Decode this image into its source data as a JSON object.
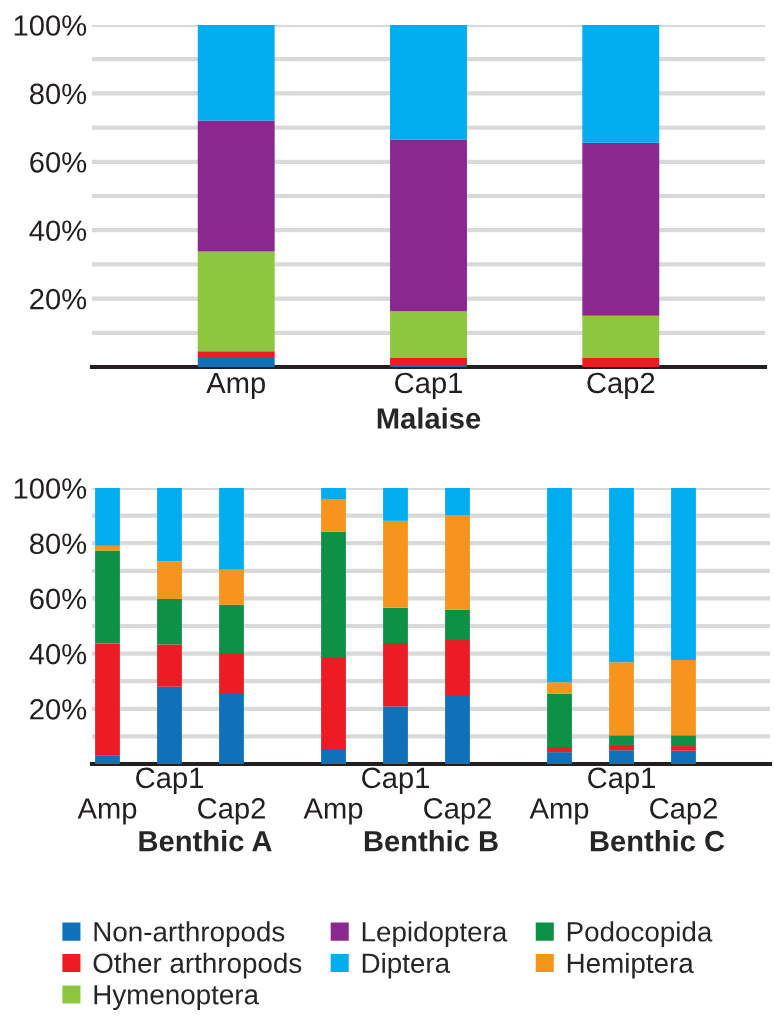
{
  "chart_data": [
    {
      "type": "bar",
      "stacked": true,
      "xlabel": "Malaise",
      "categories": [
        "Amp",
        "Cap1",
        "Cap2"
      ],
      "ylim": [
        0,
        100
      ],
      "yticks": [
        {
          "value": 10,
          "label": null
        },
        {
          "value": 20,
          "label": "20%"
        },
        {
          "value": 30,
          "label": null
        },
        {
          "value": 40,
          "label": "40%"
        },
        {
          "value": 50,
          "label": null
        },
        {
          "value": 60,
          "label": "60%"
        },
        {
          "value": 70,
          "label": null
        },
        {
          "value": 80,
          "label": "80%"
        },
        {
          "value": 90,
          "label": null
        },
        {
          "value": 100,
          "label": "100%"
        }
      ],
      "grid": "y",
      "legend": "bottom",
      "series": [
        {
          "name": "Non-arthropods",
          "color": "#1071b9",
          "values": [
            2.9,
            0.3,
            0
          ]
        },
        {
          "name": "Other arthropods",
          "color": "#ed1c24",
          "values": [
            1.7,
            2.3,
            2.6
          ]
        },
        {
          "name": "Hymenoptera",
          "color": "#8dc63f",
          "values": [
            29.2,
            13.7,
            12.4
          ]
        },
        {
          "name": "Lepidoptera",
          "color": "#8b288f",
          "values": [
            38.3,
            50.2,
            50.6
          ]
        },
        {
          "name": "Diptera",
          "color": "#00aeef",
          "values": [
            27.9,
            33.5,
            34.4
          ]
        }
      ]
    },
    {
      "type": "bar",
      "stacked": true,
      "xlabel": "Benthic A",
      "categories": [
        "Amp",
        "Cap1",
        "Cap2"
      ],
      "ylim": [
        0,
        100
      ],
      "yticks": [
        {
          "value": 10,
          "label": null
        },
        {
          "value": 20,
          "label": "20%"
        },
        {
          "value": 30,
          "label": null
        },
        {
          "value": 40,
          "label": "40%"
        },
        {
          "value": 50,
          "label": null
        },
        {
          "value": 60,
          "label": "60%"
        },
        {
          "value": 70,
          "label": null
        },
        {
          "value": 80,
          "label": "80%"
        },
        {
          "value": 90,
          "label": null
        },
        {
          "value": 100,
          "label": "100%"
        }
      ],
      "grid": "y",
      "legend": "bottom",
      "series": [
        {
          "name": "Non-arthropods",
          "color": "#1071b9",
          "values": [
            3.2,
            28.0,
            25.4
          ]
        },
        {
          "name": "Other arthropods",
          "color": "#ed1c24",
          "values": [
            40.5,
            15.3,
            14.8
          ]
        },
        {
          "name": "Podocopida",
          "color": "#0d9146",
          "values": [
            33.7,
            16.5,
            17.5
          ]
        },
        {
          "name": "Hemiptera",
          "color": "#f7941d",
          "values": [
            1.7,
            13.7,
            12.8
          ]
        },
        {
          "name": "Diptera",
          "color": "#00aeef",
          "values": [
            20.9,
            26.5,
            29.5
          ]
        }
      ]
    },
    {
      "type": "bar",
      "stacked": true,
      "xlabel": "Benthic B",
      "categories": [
        "Amp",
        "Cap1",
        "Cap2"
      ],
      "ylim": [
        0,
        100
      ],
      "yticks": [
        {
          "value": 10,
          "label": null
        },
        {
          "value": 20,
          "label": "20%"
        },
        {
          "value": 30,
          "label": null
        },
        {
          "value": 40,
          "label": "40%"
        },
        {
          "value": 50,
          "label": null
        },
        {
          "value": 60,
          "label": "60%"
        },
        {
          "value": 70,
          "label": null
        },
        {
          "value": 80,
          "label": "80%"
        },
        {
          "value": 90,
          "label": null
        },
        {
          "value": 100,
          "label": "100%"
        }
      ],
      "grid": "y",
      "tick_labels": "x",
      "legend": "bottom",
      "series": [
        {
          "name": "Non-arthropods",
          "color": "#1071b9",
          "values": [
            5.1,
            20.8,
            24.6
          ]
        },
        {
          "name": "Other arthropods",
          "color": "#ed1c24",
          "values": [
            33.7,
            23.0,
            20.3
          ]
        },
        {
          "name": "Podocopida",
          "color": "#0d9146",
          "values": [
            45.3,
            12.8,
            11.0
          ]
        },
        {
          "name": "Hemiptera",
          "color": "#f7941d",
          "values": [
            11.7,
            31.5,
            34.2
          ]
        },
        {
          "name": "Diptera",
          "color": "#00aeef",
          "values": [
            4.2,
            11.9,
            9.9
          ]
        }
      ]
    },
    {
      "type": "bar",
      "stacked": true,
      "xlabel": "Benthic C",
      "categories": [
        "Amp",
        "Cap1",
        "Cap2"
      ],
      "ylim": [
        0,
        100
      ],
      "yticks": [
        {
          "value": 10,
          "label": null
        },
        {
          "value": 20,
          "label": "20%"
        },
        {
          "value": 30,
          "label": null
        },
        {
          "value": 40,
          "label": "40%"
        },
        {
          "value": 50,
          "label": null
        },
        {
          "value": 60,
          "label": "60%"
        },
        {
          "value": 70,
          "label": null
        },
        {
          "value": 80,
          "label": "80%"
        },
        {
          "value": 90,
          "label": null
        },
        {
          "value": 100,
          "label": "100%"
        }
      ],
      "grid": "y",
      "tick_labels": "x",
      "legend": "bottom",
      "series": [
        {
          "name": "Non-arthropods",
          "color": "#1071b9",
          "values": [
            4.3,
            5.0,
            4.8
          ]
        },
        {
          "name": "Other arthropods",
          "color": "#ed1c24",
          "values": [
            1.9,
            1.9,
            1.7
          ]
        },
        {
          "name": "Podocopida",
          "color": "#0d9146",
          "values": [
            19.2,
            3.5,
            3.9
          ]
        },
        {
          "name": "Hemiptera",
          "color": "#f7941d",
          "values": [
            4.2,
            26.5,
            27.3
          ]
        },
        {
          "name": "Diptera",
          "color": "#00aeef",
          "values": [
            70.4,
            63.1,
            62.3
          ]
        }
      ]
    }
  ]
}
